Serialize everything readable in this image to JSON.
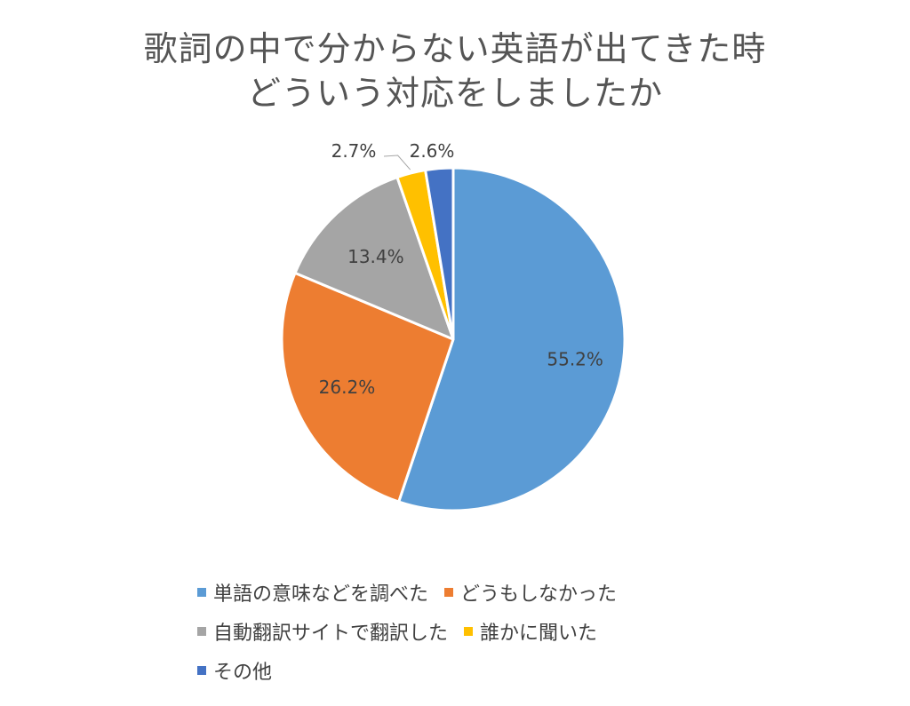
{
  "chart_data": {
    "type": "pie",
    "title_lines": [
      "歌詞の中で分からない英語が出てきた時",
      "どういう対応をしましたか"
    ],
    "slices": [
      {
        "name": "単語の意味などを調べた",
        "value": 55.2,
        "label": "55.2%",
        "color": "#5B9BD5"
      },
      {
        "name": "どうもしなかった",
        "value": 26.2,
        "label": "26.2%",
        "color": "#ED7D31"
      },
      {
        "name": "自動翻訳サイトで翻訳した",
        "value": 13.4,
        "label": "13.4%",
        "color": "#A5A5A5"
      },
      {
        "name": "誰かに聞いた",
        "value": 2.7,
        "label": "2.7%",
        "color": "#FFC000"
      },
      {
        "name": "その他",
        "value": 2.6,
        "label": "2.6%",
        "color": "#4472C4"
      }
    ],
    "legend_placement": "bottom"
  }
}
